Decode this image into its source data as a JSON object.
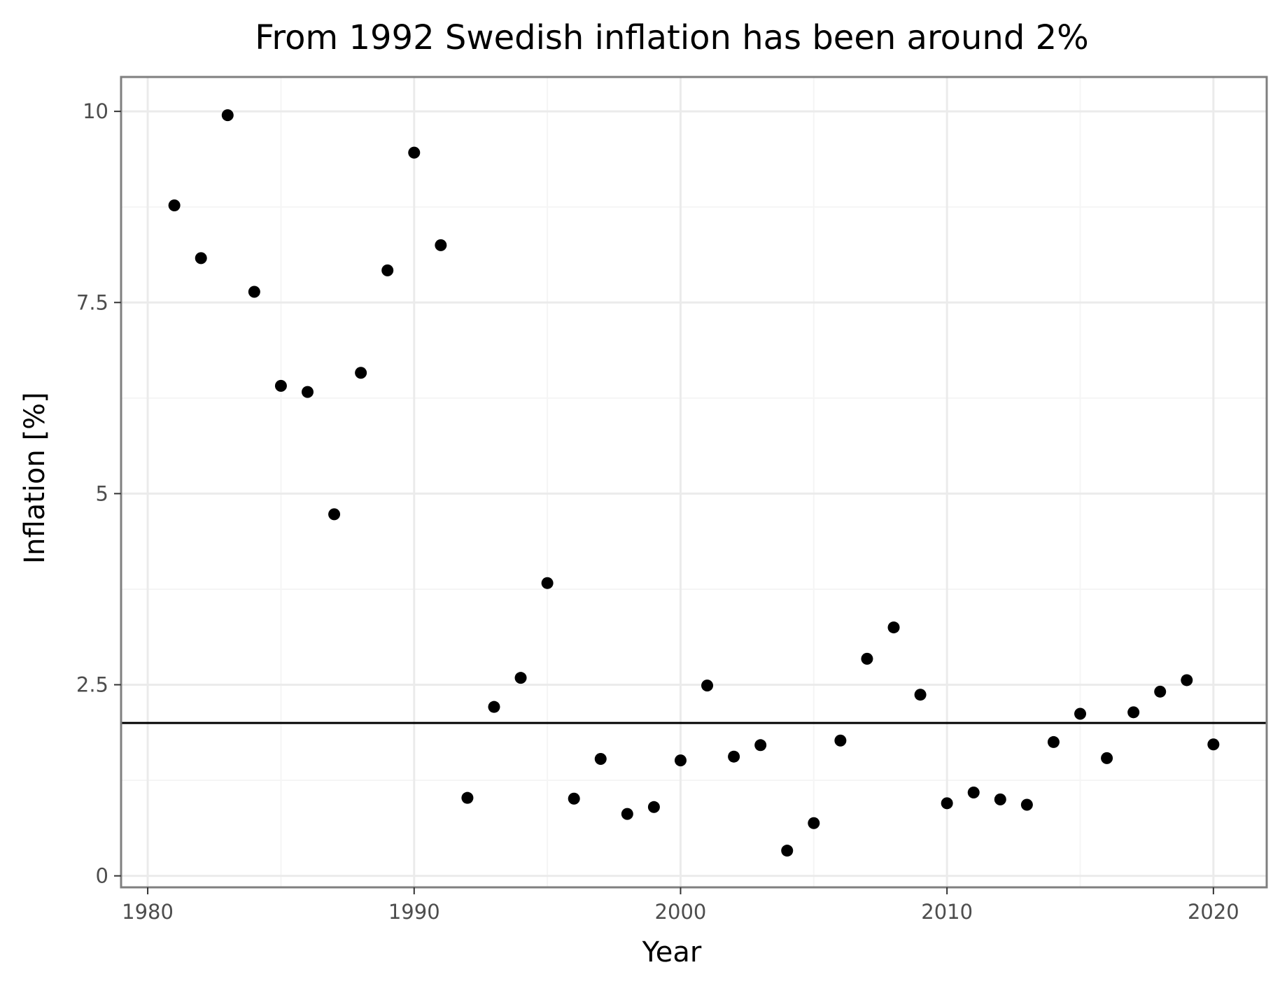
{
  "chart_data": {
    "type": "scatter",
    "title": "From 1992 Swedish inflation has been around 2%",
    "xlabel": "Year",
    "ylabel": "Inflation [%]",
    "xlim": [
      1979.0,
      2022.0
    ],
    "ylim": [
      -0.15,
      10.45
    ],
    "x_ticks": [
      1980,
      1990,
      2000,
      2010,
      2020
    ],
    "y_ticks": [
      0,
      2.5,
      5,
      7.5,
      10
    ],
    "y_tick_labels": [
      "0",
      "2.5",
      "5",
      "7.5",
      "10"
    ],
    "x_tick_labels": [
      "1980",
      "1990",
      "2000",
      "2010",
      "2020"
    ],
    "grid": true,
    "reference_line": {
      "y": 2.0,
      "color": "#000000"
    },
    "marker_color": "#000000",
    "panel_border_color": "#7f7f7f",
    "grid_color": "#ebebeb",
    "x": [
      1981,
      1982,
      1983,
      1984,
      1985,
      1986,
      1987,
      1988,
      1989,
      1990,
      1991,
      1992,
      1993,
      1994,
      1995,
      1996,
      1997,
      1998,
      1999,
      2000,
      2001,
      2002,
      2003,
      2004,
      2005,
      2006,
      2007,
      2008,
      2009,
      2010,
      2011,
      2012,
      2013,
      2014,
      2015,
      2016,
      2017,
      2018,
      2019,
      2020
    ],
    "y": [
      8.77,
      8.08,
      9.95,
      7.64,
      6.41,
      6.33,
      4.73,
      6.58,
      7.92,
      9.46,
      8.25,
      1.02,
      2.21,
      2.59,
      3.83,
      1.01,
      1.53,
      0.81,
      0.9,
      1.51,
      2.49,
      1.56,
      1.71,
      0.33,
      0.69,
      1.77,
      2.84,
      3.25,
      2.37,
      0.95,
      1.09,
      1.0,
      0.93,
      1.75,
      2.12,
      1.54,
      2.14,
      2.41,
      2.56,
      1.72
    ]
  }
}
